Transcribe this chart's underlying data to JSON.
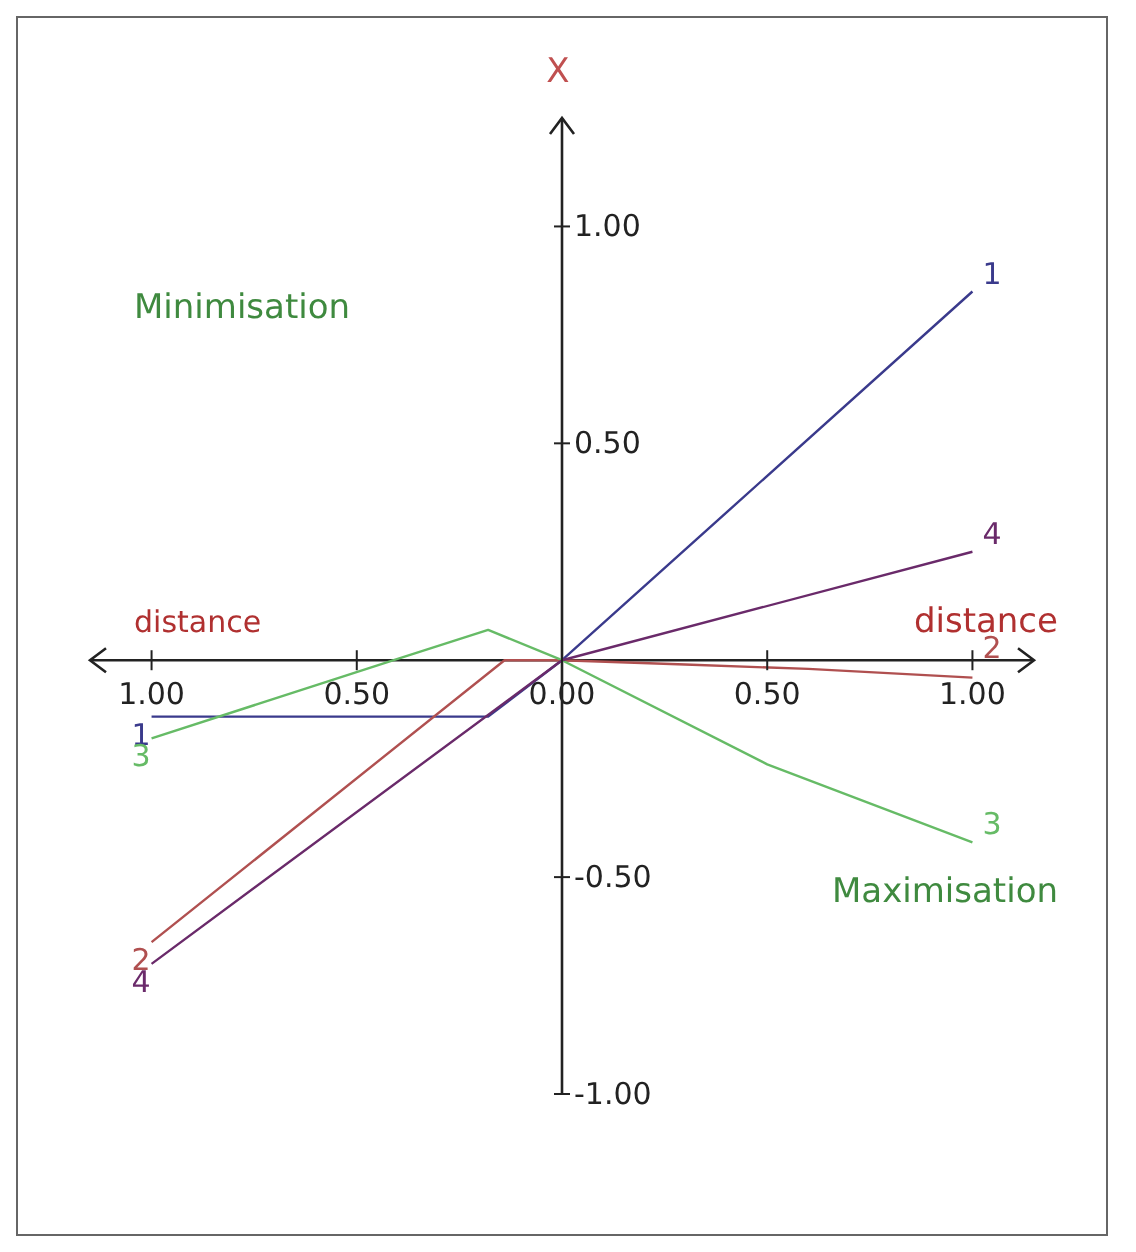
{
  "chart_data": {
    "type": "line",
    "xlabel": "distance",
    "ylabel": "X",
    "annotations": [
      "Minimisation",
      "Maximisation",
      "distance"
    ],
    "xlim": [
      -1.15,
      1.15
    ],
    "ylim": [
      -1,
      1.25
    ],
    "xticks": [
      {
        "value": -1,
        "label": "1.00"
      },
      {
        "value": -0.5,
        "label": "0.50"
      },
      {
        "value": 0,
        "label": "0.00"
      },
      {
        "value": 0.5,
        "label": "0.50"
      },
      {
        "value": 1,
        "label": "1.00"
      }
    ],
    "yticks": [
      {
        "value": -1,
        "label": "-1.00"
      },
      {
        "value": -0.5,
        "label": "-0.50"
      },
      {
        "value": 0.5,
        "label": "0.50"
      },
      {
        "value": 1,
        "label": "1.00"
      }
    ],
    "grid": false,
    "legend": false,
    "marker": "none",
    "line_style": "solid",
    "series": [
      {
        "name": "1",
        "color": "#3a3a8c",
        "x": [
          -1,
          -0.18,
          0,
          1
        ],
        "values": [
          -0.13,
          -0.13,
          0,
          0.85
        ]
      },
      {
        "name": "2",
        "color": "#b05050",
        "x": [
          -1,
          -0.14,
          0,
          0.3,
          0.6,
          1
        ],
        "values": [
          -0.65,
          0,
          0,
          -0.01,
          -0.02,
          -0.04
        ]
      },
      {
        "name": "3",
        "color": "#66bb66",
        "x": [
          -1,
          -0.41,
          -0.18,
          0,
          0.5,
          1
        ],
        "values": [
          -0.18,
          0,
          0.07,
          0,
          -0.24,
          -0.42
        ]
      },
      {
        "name": "4",
        "color": "#6a2a6a",
        "x": [
          -1,
          0,
          1
        ],
        "values": [
          -0.7,
          0,
          0.25
        ]
      }
    ]
  }
}
